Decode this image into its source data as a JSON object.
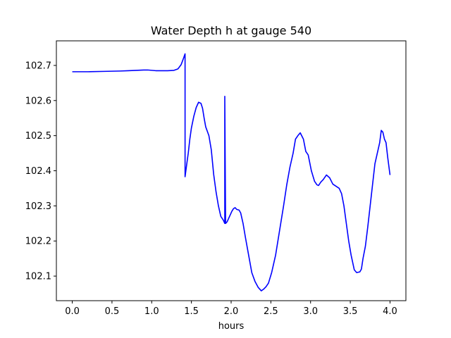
{
  "chart_data": {
    "type": "line",
    "title": "Water Depth h at gauge 540",
    "xlabel": "hours",
    "ylabel": "",
    "xlim": [
      -0.2,
      4.2
    ],
    "ylim": [
      102.03,
      102.77
    ],
    "xticks": [
      0.0,
      0.5,
      1.0,
      1.5,
      2.0,
      2.5,
      3.0,
      3.5,
      4.0
    ],
    "xtick_labels": [
      "0.0",
      "0.5",
      "1.0",
      "1.5",
      "2.0",
      "2.5",
      "3.0",
      "3.5",
      "4.0"
    ],
    "yticks": [
      102.1,
      102.2,
      102.3,
      102.4,
      102.5,
      102.6,
      102.7
    ],
    "ytick_labels": [
      "102.1",
      "102.2",
      "102.3",
      "102.4",
      "102.5",
      "102.6",
      "102.7"
    ],
    "grid": false,
    "series": [
      {
        "color": "#0000ff",
        "x": [
          0.0,
          0.2,
          0.4,
          0.6,
          0.7,
          0.8,
          0.9,
          0.95,
          1.0,
          1.05,
          1.1,
          1.2,
          1.28,
          1.33,
          1.37,
          1.4,
          1.42,
          1.42,
          1.43,
          1.46,
          1.48,
          1.5,
          1.53,
          1.56,
          1.59,
          1.62,
          1.64,
          1.66,
          1.68,
          1.72,
          1.75,
          1.78,
          1.81,
          1.84,
          1.87,
          1.9,
          1.92,
          1.92,
          1.93,
          1.95,
          1.98,
          2.01,
          2.03,
          2.05,
          2.07,
          2.1,
          2.12,
          2.15,
          2.18,
          2.22,
          2.26,
          2.3,
          2.34,
          2.38,
          2.41,
          2.44,
          2.47,
          2.51,
          2.56,
          2.61,
          2.66,
          2.7,
          2.74,
          2.78,
          2.81,
          2.84,
          2.87,
          2.91,
          2.94,
          2.97,
          3.01,
          3.05,
          3.08,
          3.1,
          3.13,
          3.16,
          3.2,
          3.24,
          3.28,
          3.32,
          3.36,
          3.39,
          3.42,
          3.45,
          3.48,
          3.51,
          3.55,
          3.58,
          3.62,
          3.64,
          3.66,
          3.69,
          3.72,
          3.75,
          3.78,
          3.81,
          3.84,
          3.87,
          3.89,
          3.91,
          3.93,
          3.95,
          3.97,
          4.0
        ],
        "y": [
          102.682,
          102.682,
          102.683,
          102.684,
          102.685,
          102.686,
          102.687,
          102.687,
          102.686,
          102.685,
          102.685,
          102.685,
          102.686,
          102.69,
          102.702,
          102.72,
          102.733,
          102.383,
          102.4,
          102.45,
          102.49,
          102.522,
          102.555,
          102.58,
          102.595,
          102.592,
          102.578,
          102.55,
          102.525,
          102.5,
          102.46,
          102.39,
          102.34,
          102.3,
          102.27,
          102.26,
          102.25,
          102.612,
          102.25,
          102.255,
          102.27,
          102.285,
          102.292,
          102.295,
          102.29,
          102.288,
          102.28,
          102.25,
          102.21,
          102.16,
          102.11,
          102.085,
          102.068,
          102.058,
          102.063,
          102.07,
          102.08,
          102.11,
          102.16,
          102.23,
          102.3,
          102.36,
          102.41,
          102.45,
          102.49,
          102.5,
          102.508,
          102.49,
          102.455,
          102.445,
          102.4,
          102.37,
          102.36,
          102.358,
          102.368,
          102.375,
          102.388,
          102.38,
          102.362,
          102.356,
          102.35,
          102.335,
          102.3,
          102.25,
          102.2,
          102.16,
          102.118,
          102.11,
          102.112,
          102.12,
          102.15,
          102.185,
          102.24,
          102.3,
          102.36,
          102.42,
          102.45,
          102.48,
          102.515,
          102.51,
          102.49,
          102.48,
          102.44,
          102.388
        ]
      }
    ]
  }
}
